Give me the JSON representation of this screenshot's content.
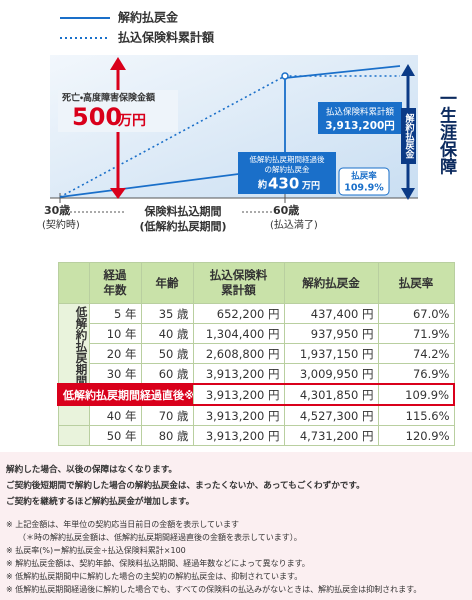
{
  "diagram": {
    "legend": [
      "解約払戻金",
      "払込保険料累計額"
    ],
    "death_benefit": {
      "label": "死亡・高度障害保険金額",
      "amount": "500",
      "unit": "万円"
    },
    "lifetime": "一生涯保障",
    "surrender_label": "解約払戻金",
    "premium_total": {
      "label": "払込保険料累計額",
      "amount": "3,913,200円"
    },
    "low_refund": {
      "line1": "低解約払戻期間経過後",
      "line2": "の解約払戻金",
      "prefix": "約",
      "amount": "430",
      "unit": "万円"
    },
    "rate": {
      "label": "払戻率",
      "value": "109.9%"
    },
    "axis": {
      "start": "30歳",
      "start_note": "(契約時)",
      "period": "保険料払込期間",
      "period_note": "(低解約払戻期間)",
      "end": "60歳",
      "end_note": "(払込満了)"
    }
  },
  "table": {
    "headers": [
      [
        "経過",
        "年数"
      ],
      [
        "年齢"
      ],
      [
        "払込保険料",
        "累計額"
      ],
      [
        "解約払戻金"
      ],
      [
        "払戻率"
      ]
    ],
    "group_label": "低解約払戻期間",
    "rows": [
      [
        "5 年",
        "35 歳",
        "652,200 円",
        "437,400 円",
        "67.0%"
      ],
      [
        "10 年",
        "40 歳",
        "1,304,400 円",
        "937,950 円",
        "71.9%"
      ],
      [
        "20 年",
        "50 歳",
        "2,608,800 円",
        "1,937,150 円",
        "74.2%"
      ],
      [
        "30 年",
        "60 歳",
        "3,913,200 円",
        "3,009,950 円",
        "76.9%"
      ],
      [
        "低解約払戻期間経過直後※",
        "3,913,200 円",
        "4,301,850 円",
        "109.9%"
      ],
      [
        "40 年",
        "70 歳",
        "3,913,200 円",
        "4,527,300 円",
        "115.6%"
      ],
      [
        "50 年",
        "80 歳",
        "3,913,200 円",
        "4,731,200 円",
        "120.9%"
      ]
    ]
  },
  "notes": {
    "main": [
      "解約した場合、以後の保障はなくなります。",
      "ご契約後短期間で解約した場合の解約払戻金は、まったくないか、あってもごくわずかです。",
      "ご契約を継続するほど解約払戻金が増加します。"
    ],
    "fine": [
      "※ 上記金額は、年単位の契約応当日前日の金額を表示しています",
      "（＊時の解約払戻金額は、低解約払戻期間経過直後の金額を表示しています）。",
      "※ 払戻率(%)＝解約払戻金÷払込保険料累計×100",
      "※ 解約払戻金額は、契約年齢、保険料払込期間、経過年数などによって異なります。",
      "※ 低解約払戻期間中に解約した場合の主契約の解約払戻金は、抑制されています。",
      "※ 低解約払戻期間経過後に解約した場合でも、すべての保険料の払込みがないときは、解約払戻金は抑制されます。"
    ]
  }
}
